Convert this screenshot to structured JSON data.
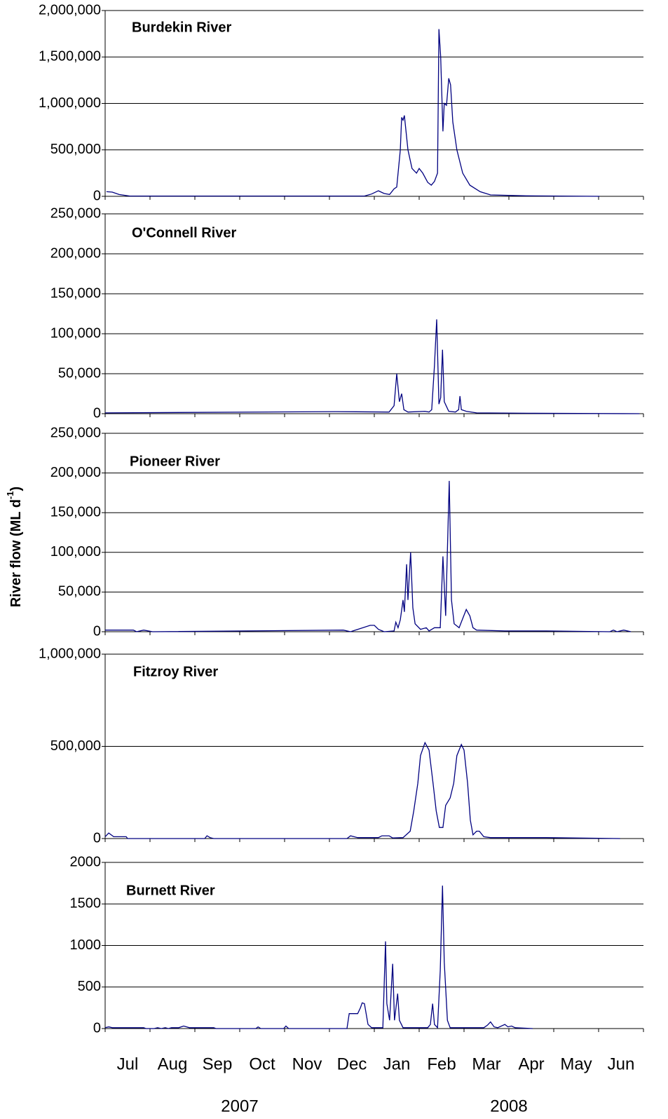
{
  "chart_data": [
    {
      "type": "line",
      "title": "Burdekin River",
      "xlim": [
        0,
        12
      ],
      "ylim": [
        0,
        2000000
      ],
      "yticks": [
        0,
        {
          "value": 500000,
          "label": "500,000"
        },
        {
          "value": 1000000,
          "label": "1,000,000"
        },
        {
          "value": 1500000,
          "label": "1,500,000"
        },
        {
          "value": 2000000,
          "label": "2,000,000"
        }
      ],
      "grid": true,
      "color": "#000080",
      "x": [
        0.03,
        0.16,
        0.31,
        0.55,
        5.78,
        5.94,
        6.09,
        6.22,
        6.34,
        6.44,
        6.5,
        6.58,
        6.61,
        6.64,
        6.67,
        6.75,
        6.84,
        6.94,
        7.0,
        7.08,
        7.19,
        7.27,
        7.34,
        7.41,
        7.44,
        7.48,
        7.53,
        7.56,
        7.61,
        7.66,
        7.7,
        7.75,
        7.84,
        7.97,
        8.13,
        8.36,
        8.59,
        9.38,
        11.02
      ],
      "values": [
        50000,
        45000,
        20000,
        3000,
        3000,
        25000,
        60000,
        30000,
        20000,
        80000,
        100000,
        500000,
        850000,
        820000,
        870000,
        500000,
        300000,
        250000,
        300000,
        250000,
        150000,
        120000,
        160000,
        250000,
        1800000,
        1500000,
        700000,
        1000000,
        980000,
        1270000,
        1200000,
        800000,
        500000,
        250000,
        120000,
        50000,
        15000,
        5000,
        0
      ]
    },
    {
      "type": "line",
      "title": "O'Connell River",
      "xlim": [
        0,
        12
      ],
      "ylim": [
        0,
        250000
      ],
      "yticks": [
        0,
        {
          "value": 50000,
          "label": "50,000"
        },
        {
          "value": 100000,
          "label": "100,000"
        },
        {
          "value": 150000,
          "label": "150,000"
        },
        {
          "value": 200000,
          "label": "200,000"
        },
        {
          "value": 250000,
          "label": "250,000"
        }
      ],
      "grid": true,
      "color": "#000080",
      "x": [
        0,
        5.14,
        6.33,
        6.44,
        6.5,
        6.56,
        6.61,
        6.66,
        6.75,
        7.13,
        7.22,
        7.28,
        7.34,
        7.39,
        7.44,
        7.48,
        7.52,
        7.56,
        7.66,
        7.81,
        7.88,
        7.91,
        7.94,
        8.05,
        8.28,
        9.42,
        11.91
      ],
      "values": [
        1000,
        2500,
        2000,
        10000,
        50000,
        15000,
        25000,
        5000,
        2000,
        3000,
        2000,
        5000,
        60000,
        118000,
        12000,
        20000,
        80000,
        15000,
        3000,
        2000,
        5000,
        22000,
        5000,
        3000,
        1000,
        500,
        0
      ]
    },
    {
      "type": "line",
      "title": "Pioneer River",
      "xlim": [
        0,
        12
      ],
      "ylim": [
        0,
        250000
      ],
      "yticks": [
        0,
        {
          "value": 50000,
          "label": "50,000"
        },
        {
          "value": 100000,
          "label": "100,000"
        },
        {
          "value": 150000,
          "label": "150,000"
        },
        {
          "value": 200000,
          "label": "200,000"
        },
        {
          "value": 250000,
          "label": "250,000"
        }
      ],
      "grid": true,
      "color": "#000080",
      "x": [
        0,
        0.63,
        0.7,
        0.86,
        1.06,
        5.31,
        5.47,
        5.91,
        6.0,
        6.09,
        6.22,
        6.44,
        6.48,
        6.53,
        6.58,
        6.64,
        6.67,
        6.72,
        6.75,
        6.81,
        6.86,
        6.91,
        7.03,
        7.16,
        7.22,
        7.34,
        7.47,
        7.53,
        7.59,
        7.67,
        7.72,
        7.78,
        7.89,
        8.05,
        8.13,
        8.2,
        8.28,
        8.91,
        9.84,
        11.25,
        11.33,
        11.41,
        11.56,
        11.72
      ],
      "values": [
        2000,
        2000,
        0,
        2000,
        0,
        2000,
        0,
        8000,
        8000,
        3000,
        0,
        1000,
        12000,
        5000,
        15000,
        40000,
        25000,
        85000,
        40000,
        100000,
        30000,
        10000,
        3000,
        5000,
        1000,
        5000,
        5000,
        95000,
        20000,
        190000,
        40000,
        10000,
        5000,
        28000,
        20000,
        5000,
        2000,
        1000,
        1000,
        0,
        2000,
        0,
        2000,
        0
      ]
    },
    {
      "type": "line",
      "title": "Fitzroy River",
      "xlim": [
        0,
        12
      ],
      "ylim": [
        0,
        1000000
      ],
      "yticks": [
        0,
        {
          "value": 500000,
          "label": "500,000"
        },
        {
          "value": 1000000,
          "label": "1,000,000"
        }
      ],
      "grid": true,
      "color": "#000080",
      "x": [
        0,
        0.08,
        0.19,
        0.47,
        0.5,
        2.22,
        2.27,
        2.34,
        2.42,
        5.39,
        5.47,
        5.63,
        6.09,
        6.17,
        6.33,
        6.41,
        6.64,
        6.8,
        6.88,
        6.97,
        7.03,
        7.13,
        7.22,
        7.31,
        7.38,
        7.45,
        7.53,
        7.59,
        7.69,
        7.77,
        7.84,
        7.94,
        8.0,
        8.08,
        8.14,
        8.2,
        8.28,
        8.34,
        8.44,
        8.59,
        9.84,
        11.48
      ],
      "values": [
        10000,
        30000,
        10000,
        10000,
        0,
        0,
        15000,
        5000,
        0,
        0,
        15000,
        5000,
        5000,
        15000,
        15000,
        3000,
        5000,
        40000,
        150000,
        300000,
        450000,
        520000,
        480000,
        300000,
        150000,
        60000,
        60000,
        180000,
        220000,
        300000,
        450000,
        510000,
        480000,
        300000,
        100000,
        20000,
        40000,
        40000,
        10000,
        5000,
        5000,
        0
      ]
    },
    {
      "type": "line",
      "title": "Burnett River",
      "xlim": [
        0,
        12
      ],
      "ylim": [
        0,
        2000
      ],
      "yticks": [
        0,
        500,
        1000,
        1500,
        2000
      ],
      "grid": true,
      "color": "#000080",
      "x": [
        0,
        0.08,
        0.16,
        0.86,
        0.91,
        1.09,
        1.17,
        1.25,
        1.34,
        1.41,
        1.48,
        1.64,
        1.75,
        1.88,
        2.42,
        2.47,
        3.36,
        3.41,
        3.47,
        3.98,
        4.03,
        4.09,
        5.39,
        5.44,
        5.63,
        5.69,
        5.73,
        5.78,
        5.86,
        5.94,
        6.19,
        6.25,
        6.28,
        6.34,
        6.41,
        6.45,
        6.52,
        6.56,
        6.64,
        7.19,
        7.25,
        7.3,
        7.34,
        7.41,
        7.47,
        7.52,
        7.56,
        7.63,
        7.69,
        8.44,
        8.52,
        8.59,
        8.67,
        8.75,
        8.91,
        8.98,
        9.06,
        9.14,
        9.53
      ],
      "values": [
        10,
        20,
        10,
        10,
        0,
        0,
        10,
        0,
        10,
        0,
        10,
        10,
        30,
        10,
        10,
        0,
        0,
        20,
        0,
        0,
        30,
        0,
        0,
        180,
        180,
        250,
        310,
        300,
        50,
        10,
        10,
        1050,
        300,
        100,
        780,
        100,
        420,
        100,
        10,
        10,
        50,
        300,
        50,
        10,
        700,
        1720,
        800,
        100,
        10,
        10,
        40,
        80,
        20,
        10,
        50,
        20,
        30,
        10,
        0
      ]
    }
  ],
  "x_axis": {
    "categories": [
      "Jul",
      "Aug",
      "Sep",
      "Oct",
      "Nov",
      "Dec",
      "Jan",
      "Feb",
      "Mar",
      "Apr",
      "May",
      "Jun"
    ],
    "years": [
      "2007",
      "2008"
    ]
  },
  "y_label": {
    "text": "River flow (ML d",
    "sup": "-1",
    "end": ")"
  }
}
